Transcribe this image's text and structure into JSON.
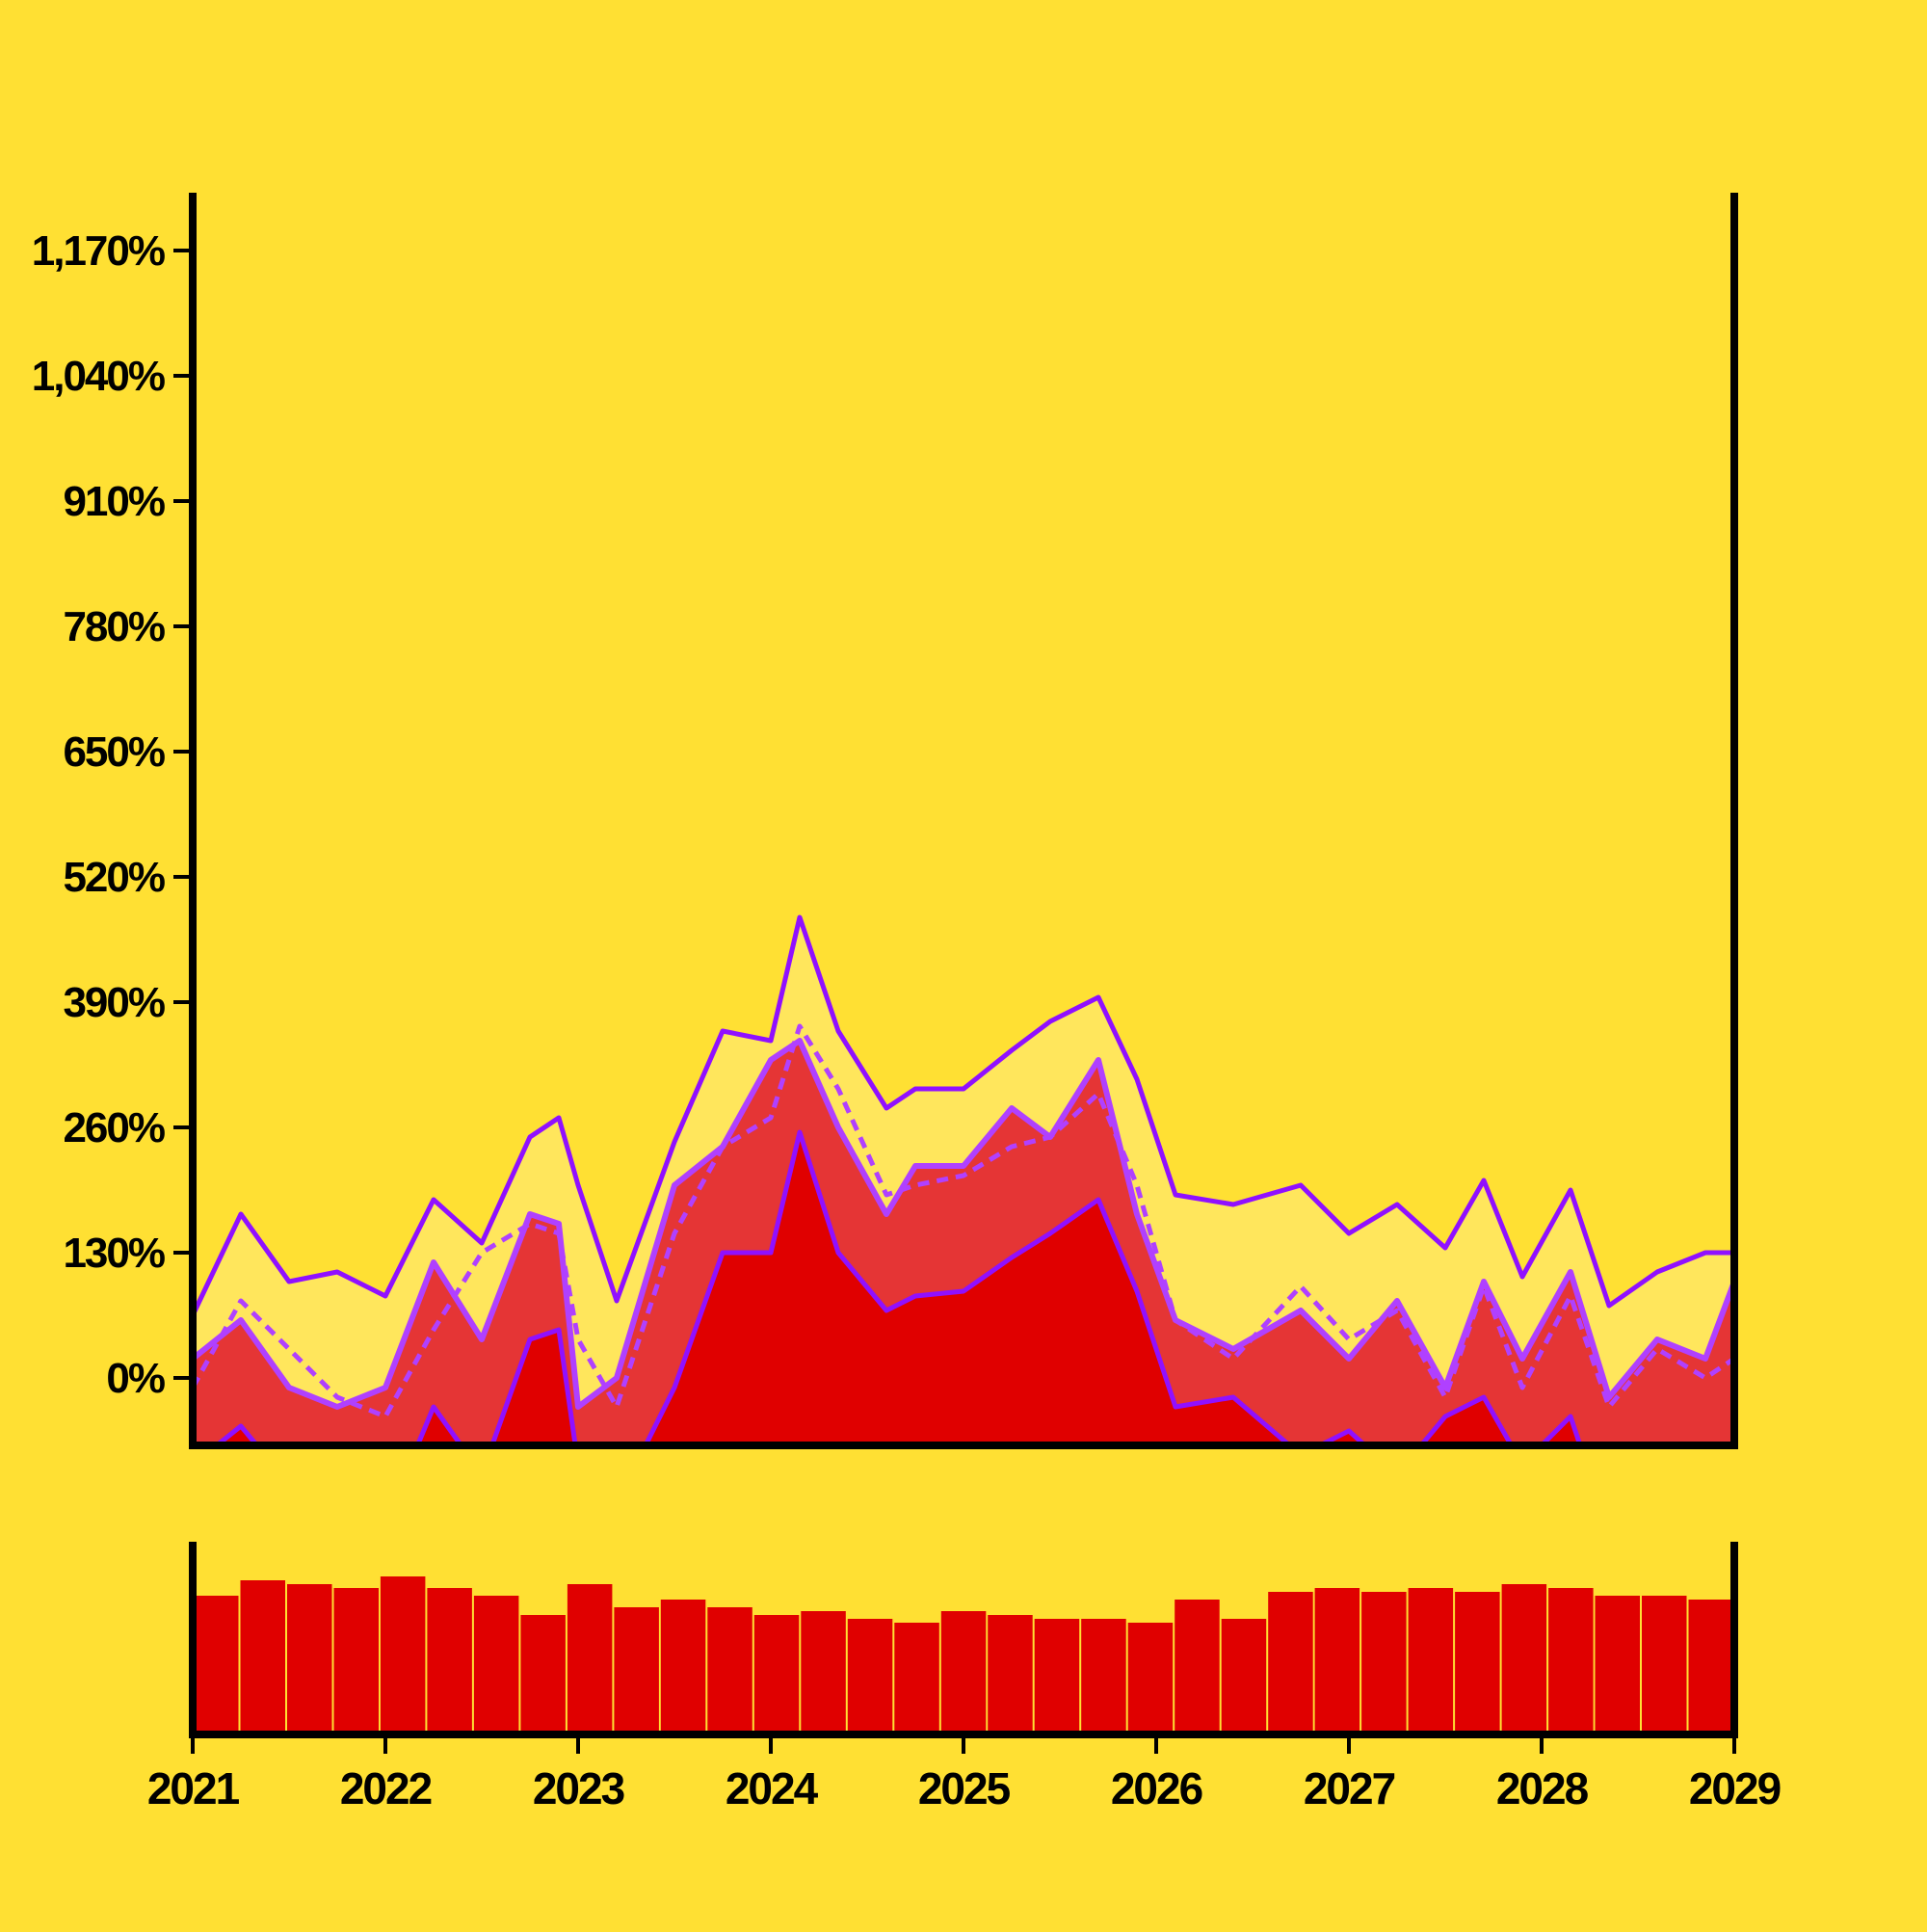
{
  "chart_data": [
    {
      "type": "area",
      "title": "",
      "xlabel": "",
      "ylabel": "",
      "xlim": [
        2021,
        2029
      ],
      "ylim": [
        -70,
        1230
      ],
      "y_ticks": [
        0,
        130,
        260,
        390,
        520,
        650,
        780,
        910,
        1040,
        1170
      ],
      "y_tick_labels": [
        "0%",
        "130%",
        "260%",
        "390%",
        "520%",
        "650%",
        "780%",
        "910%",
        "1,040%",
        "1,170%"
      ],
      "x_ticks": [
        2021,
        2022,
        2023,
        2024,
        2025,
        2026,
        2027,
        2028,
        2029
      ],
      "x_tick_labels": [
        "2021",
        "2022",
        "2023",
        "2024",
        "2025",
        "2026",
        "2027",
        "2028",
        "2029"
      ],
      "grid": false,
      "x": [
        2021.0,
        2021.25,
        2021.5,
        2021.75,
        2022.0,
        2022.25,
        2022.5,
        2022.75,
        2022.9,
        2023.0,
        2023.2,
        2023.5,
        2023.75,
        2024.0,
        2024.15,
        2024.35,
        2024.6,
        2024.75,
        2025.0,
        2025.25,
        2025.45,
        2025.7,
        2025.9,
        2026.1,
        2026.4,
        2026.75,
        2027.0,
        2027.25,
        2027.5,
        2027.7,
        2027.9,
        2028.15,
        2028.35,
        2028.6,
        2028.85,
        2029.0
      ],
      "series": [
        {
          "role": "upper band",
          "style": "solid",
          "values": [
            65,
            170,
            100,
            110,
            85,
            185,
            140,
            250,
            270,
            200,
            80,
            245,
            360,
            350,
            478,
            360,
            280,
            300,
            300,
            340,
            370,
            395,
            310,
            190,
            180,
            200,
            150,
            180,
            135,
            205,
            105,
            195,
            75,
            110,
            130,
            130
          ]
        },
        {
          "role": "middle line",
          "style": "dashed",
          "values": [
            -10,
            80,
            30,
            -20,
            -40,
            50,
            130,
            160,
            150,
            40,
            -30,
            150,
            240,
            270,
            365,
            300,
            190,
            200,
            210,
            240,
            250,
            295,
            200,
            60,
            20,
            95,
            40,
            70,
            -20,
            95,
            -10,
            85,
            -30,
            30,
            0,
            20
          ]
        },
        {
          "role": "lower band",
          "style": "solid",
          "values": [
            -90,
            -50,
            -110,
            -140,
            -150,
            -30,
            -100,
            40,
            50,
            -90,
            -130,
            -10,
            130,
            130,
            255,
            130,
            70,
            85,
            90,
            125,
            150,
            185,
            90,
            -30,
            -20,
            -80,
            -55,
            -100,
            -40,
            -20,
            -90,
            -40,
            -160,
            -120,
            -100,
            -80
          ]
        },
        {
          "role": "observed",
          "style": "filled",
          "values": [
            20,
            60,
            -10,
            -30,
            -10,
            120,
            40,
            170,
            160,
            -30,
            0,
            200,
            240,
            330,
            350,
            260,
            170,
            220,
            220,
            280,
            250,
            330,
            170,
            60,
            30,
            70,
            20,
            80,
            -10,
            100,
            20,
            110,
            -20,
            40,
            20,
            100
          ]
        }
      ]
    },
    {
      "type": "bar",
      "title": "",
      "xlabel": "",
      "ylabel": "",
      "xlim": [
        2021,
        2029
      ],
      "ylim": [
        0,
        1
      ],
      "grid": false,
      "x": [
        2021.0,
        2021.25,
        2021.5,
        2021.75,
        2022.0,
        2022.25,
        2022.5,
        2022.75,
        2023.0,
        2023.25,
        2023.5,
        2023.75,
        2024.0,
        2024.25,
        2024.5,
        2024.75,
        2025.0,
        2025.25,
        2025.5,
        2025.75,
        2026.0,
        2026.25,
        2026.5,
        2026.75,
        2027.0,
        2027.25,
        2027.5,
        2027.75,
        2028.0,
        2028.25,
        2028.5,
        2028.75,
        2029.0
      ],
      "values": [
        0.72,
        0.8,
        0.78,
        0.76,
        0.82,
        0.76,
        0.72,
        0.62,
        0.78,
        0.66,
        0.7,
        0.66,
        0.62,
        0.64,
        0.6,
        0.58,
        0.64,
        0.62,
        0.6,
        0.6,
        0.58,
        0.7,
        0.6,
        0.74,
        0.76,
        0.74,
        0.76,
        0.74,
        0.78,
        0.76,
        0.72,
        0.72,
        0.7
      ]
    }
  ],
  "colors": {
    "background": "#FFE033",
    "upper_band_fill": "#FFE65C",
    "observed_fill": "#E53535",
    "lower_fill": "#E00000",
    "band_line": "#9010FF",
    "observed_line": "#B040FF",
    "axis": "#000000",
    "bars": "#E00000"
  }
}
